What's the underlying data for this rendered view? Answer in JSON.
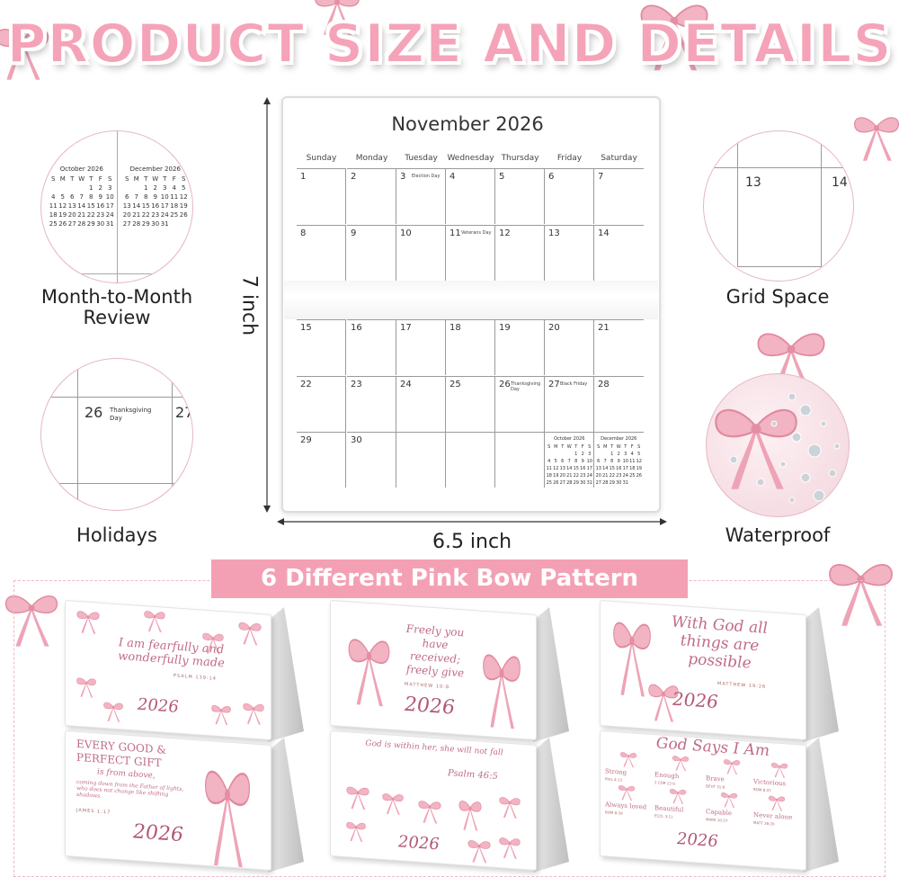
{
  "title": "PRODUCT SIZE AND DETAILS",
  "calendar": {
    "month": "November 2026",
    "weekdays": [
      "Sunday",
      "Monday",
      "Tuesday",
      "Wednesday",
      "Thursday",
      "Friday",
      "Saturday"
    ],
    "weeks": [
      [
        {
          "d": "1"
        },
        {
          "d": "2"
        },
        {
          "d": "3",
          "h": "Election Day"
        },
        {
          "d": "4"
        },
        {
          "d": "5"
        },
        {
          "d": "6"
        },
        {
          "d": "7"
        }
      ],
      [
        {
          "d": "8"
        },
        {
          "d": "9"
        },
        {
          "d": "10"
        },
        {
          "d": "11",
          "h": "Veterans Day"
        },
        {
          "d": "12"
        },
        {
          "d": "13"
        },
        {
          "d": "14"
        }
      ],
      [
        {
          "d": "15"
        },
        {
          "d": "16"
        },
        {
          "d": "17"
        },
        {
          "d": "18"
        },
        {
          "d": "19"
        },
        {
          "d": "20"
        },
        {
          "d": "21"
        }
      ],
      [
        {
          "d": "22"
        },
        {
          "d": "23"
        },
        {
          "d": "24"
        },
        {
          "d": "25"
        },
        {
          "d": "26",
          "h": "Thanksgiving Day"
        },
        {
          "d": "27",
          "h": "Black Friday"
        },
        {
          "d": "28"
        }
      ],
      [
        {
          "d": "29"
        },
        {
          "d": "30"
        },
        {
          "d": ""
        },
        {
          "d": ""
        },
        {
          "d": ""
        },
        {
          "d": ""
        },
        {
          "d": ""
        }
      ]
    ],
    "mini": [
      {
        "title": "October 2026",
        "head": [
          "S",
          "M",
          "T",
          "W",
          "T",
          "F",
          "S"
        ],
        "weeks": [
          [
            "",
            "",
            "",
            "",
            "1",
            "2",
            "3"
          ],
          [
            "4",
            "5",
            "6",
            "7",
            "8",
            "9",
            "10"
          ],
          [
            "11",
            "12",
            "13",
            "14",
            "15",
            "16",
            "17"
          ],
          [
            "18",
            "19",
            "20",
            "21",
            "22",
            "23",
            "24"
          ],
          [
            "25",
            "26",
            "27",
            "28",
            "29",
            "30",
            "31"
          ]
        ]
      },
      {
        "title": "December 2026",
        "head": [
          "S",
          "M",
          "T",
          "W",
          "T",
          "F",
          "S"
        ],
        "weeks": [
          [
            "",
            "",
            "1",
            "2",
            "3",
            "4",
            "5"
          ],
          [
            "6",
            "7",
            "8",
            "9",
            "10",
            "11",
            "12"
          ],
          [
            "13",
            "14",
            "15",
            "16",
            "17",
            "18",
            "19"
          ],
          [
            "20",
            "21",
            "22",
            "23",
            "24",
            "25",
            "26"
          ],
          [
            "27",
            "28",
            "29",
            "30",
            "31",
            "",
            ""
          ]
        ]
      }
    ]
  },
  "dimensions": {
    "height": "7 inch",
    "width": "6.5 inch"
  },
  "features": [
    {
      "label": "Month-to-Month Review"
    },
    {
      "label": "Holidays",
      "day": "26",
      "holiday": "Thanksgiving Day",
      "next": "27"
    },
    {
      "label": "Grid Space",
      "a": "13",
      "b": "14"
    },
    {
      "label": "Waterproof"
    }
  ],
  "banner": "6 Different Pink Bow Pattern",
  "products": [
    {
      "quote": "I am fearfully and wonderfully made",
      "ref": "PSALM 139:14",
      "year": "2026"
    },
    {
      "quote": "Freely you have received; freely give",
      "ref": "MATTHEW 10:8",
      "year": "2026"
    },
    {
      "quote": "With God all things are possible",
      "ref": "MATTHEW 19:26",
      "year": "2026"
    },
    {
      "quote": "EVERY GOOD & PERFECT GIFT",
      "sub": "is from above,",
      "body": "coming down from the Father of lights, who does not change like shifting shadows.",
      "ref": "JAMES 1:17",
      "year": "2026"
    },
    {
      "quote": "God is within her, she will not fall",
      "ref": "Psalm 46:5",
      "year": "2026"
    },
    {
      "quote": "God Says I Am",
      "year": "2026",
      "items": [
        {
          "w": "Strong",
          "r": "PHIL 4:13"
        },
        {
          "w": "Enough",
          "r": "2 COR 12:9"
        },
        {
          "w": "Brave",
          "r": "DEUT 31:6"
        },
        {
          "w": "Victorious",
          "r": "ROM 8:37"
        },
        {
          "w": "Always loved",
          "r": "ROM 8:39"
        },
        {
          "w": "Beautiful",
          "r": "ECCL 3:11"
        },
        {
          "w": "Capable",
          "r": "MARK 10:27"
        },
        {
          "w": "Never alone",
          "r": "MATT 28:20"
        }
      ]
    }
  ],
  "colors": {
    "accent": "#f4a0b4",
    "title": "#f5a3b8",
    "ribbon": "#e99aae",
    "text": "#b35875"
  },
  "icons": [
    "pink-bow-icon",
    "dimension-arrow-icon",
    "water-droplet-icon"
  ]
}
